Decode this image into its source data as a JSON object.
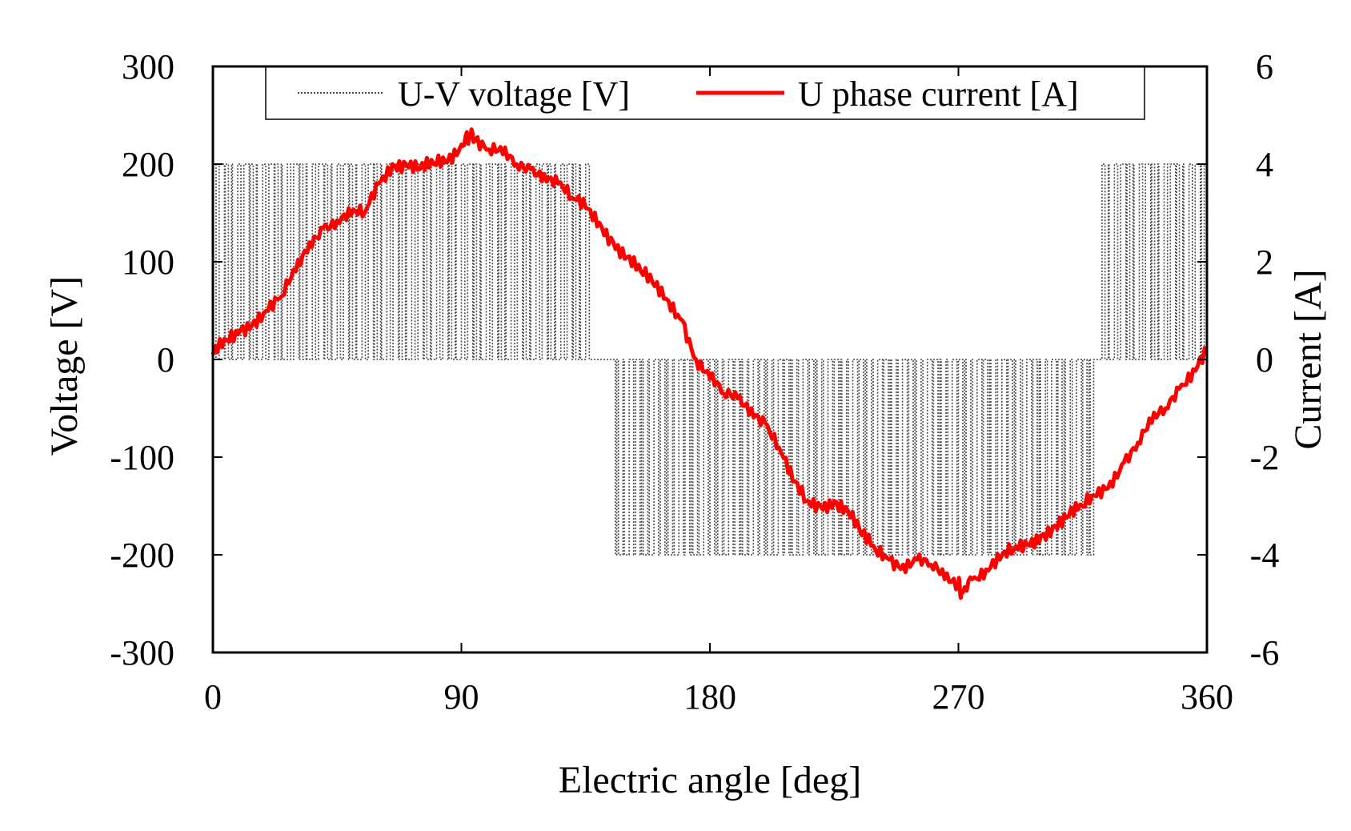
{
  "chart_data": {
    "type": "line",
    "title": "",
    "xlabel": "Electric angle [deg]",
    "ylabel_left": "Voltage [V]",
    "ylabel_right": "Current [A]",
    "xlim": [
      0,
      360
    ],
    "ylim_left": [
      -300,
      300
    ],
    "ylim_right": [
      -6,
      6
    ],
    "x_ticks": [
      "0",
      "90",
      "180",
      "270",
      "360"
    ],
    "y_left_ticks": [
      "300",
      "200",
      "100",
      "0",
      "-100",
      "-200",
      "-300"
    ],
    "y_right_ticks": [
      "6",
      "4",
      "2",
      "0",
      "-2",
      "-4",
      "-6"
    ],
    "grid": false,
    "legend_position": "top",
    "series": [
      {
        "name": "U-V voltage [V]",
        "axis": "left",
        "color": "#444444",
        "style": "dotted",
        "segments": [
          {
            "x_start": 0,
            "x_end": 137,
            "levels": [
              200,
              0
            ]
          },
          {
            "x_start": 137,
            "x_end": 144,
            "levels": [
              0
            ]
          },
          {
            "x_start": 144,
            "x_end": 319,
            "levels": [
              0,
              -200
            ]
          },
          {
            "x_start": 319,
            "x_end": 322,
            "levels": [
              0
            ]
          },
          {
            "x_start": 322,
            "x_end": 360,
            "levels": [
              200,
              0
            ]
          }
        ]
      },
      {
        "name": "U phase current [A]",
        "axis": "right",
        "color": "#ff0000",
        "style": "solid",
        "x": [
          0,
          5,
          10,
          15,
          20,
          25,
          30,
          35,
          40,
          45,
          50,
          55,
          60,
          65,
          70,
          75,
          80,
          85,
          90,
          93,
          95,
          100,
          105,
          110,
          115,
          120,
          125,
          130,
          135,
          140,
          145,
          150,
          155,
          160,
          165,
          170,
          175,
          180,
          185,
          190,
          195,
          200,
          205,
          210,
          215,
          220,
          225,
          230,
          235,
          240,
          245,
          250,
          255,
          260,
          265,
          270,
          271,
          275,
          280,
          285,
          290,
          295,
          300,
          305,
          310,
          315,
          320,
          325,
          330,
          335,
          340,
          345,
          350,
          355,
          360
        ],
        "y": [
          0.1,
          0.4,
          0.6,
          0.8,
          1.0,
          1.3,
          1.8,
          2.4,
          2.7,
          2.85,
          2.95,
          3.0,
          3.6,
          4.0,
          4.0,
          3.9,
          4.0,
          4.05,
          4.4,
          4.6,
          4.5,
          4.3,
          4.2,
          4.0,
          3.9,
          3.8,
          3.6,
          3.3,
          3.1,
          2.8,
          2.4,
          2.1,
          1.8,
          1.5,
          1.2,
          0.8,
          0.0,
          -0.4,
          -0.7,
          -0.8,
          -1.0,
          -1.3,
          -1.8,
          -2.5,
          -2.9,
          -3.0,
          -2.9,
          -3.1,
          -3.6,
          -3.9,
          -4.1,
          -4.2,
          -4.1,
          -4.2,
          -4.5,
          -4.6,
          -4.8,
          -4.5,
          -4.3,
          -4.1,
          -3.9,
          -3.8,
          -3.6,
          -3.4,
          -3.2,
          -3.0,
          -2.8,
          -2.5,
          -2.1,
          -1.7,
          -1.3,
          -1.0,
          -0.6,
          -0.2,
          0.2
        ]
      }
    ]
  }
}
